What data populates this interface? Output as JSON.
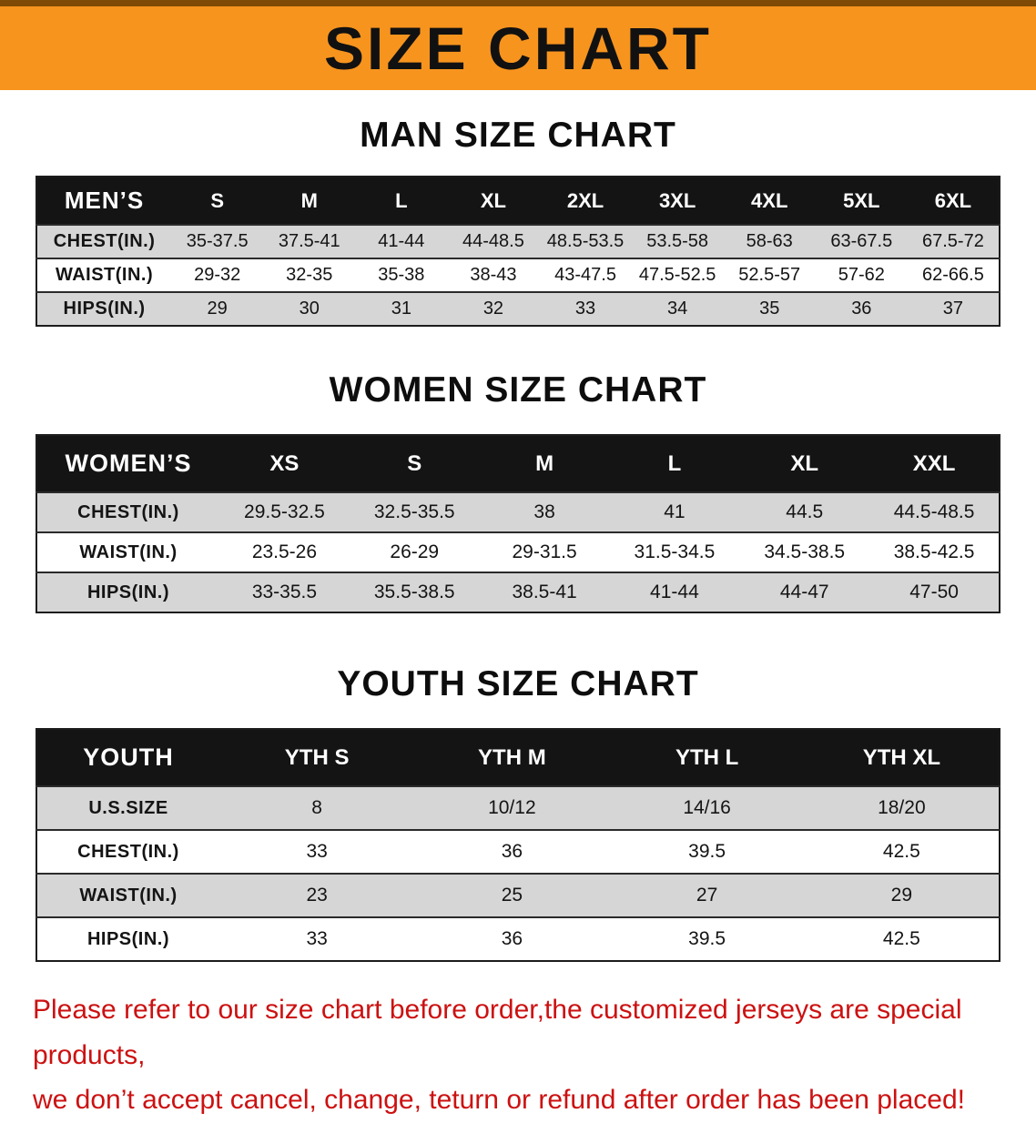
{
  "banner": {
    "title": "SIZE CHART"
  },
  "colors": {
    "banner_bg": "#F7941E",
    "header_bg": "#141414",
    "stripe": "#D6D6D6",
    "footer_text": "#CC1111"
  },
  "sections": [
    {
      "heading": "MAN SIZE CHART",
      "table": {
        "header": [
          "MEN’S",
          "S",
          "M",
          "L",
          "XL",
          "2XL",
          "3XL",
          "4XL",
          "5XL",
          "6XL"
        ],
        "rows": [
          [
            "CHEST(IN.)",
            "35-37.5",
            "37.5-41",
            "41-44",
            "44-48.5",
            "48.5-53.5",
            "53.5-58",
            "58-63",
            "63-67.5",
            "67.5-72"
          ],
          [
            "WAIST(IN.)",
            "29-32",
            "32-35",
            "35-38",
            "38-43",
            "43-47.5",
            "47.5-52.5",
            "52.5-57",
            "57-62",
            "62-66.5"
          ],
          [
            "HIPS(IN.)",
            "29",
            "30",
            "31",
            "32",
            "33",
            "34",
            "35",
            "36",
            "37"
          ]
        ]
      }
    },
    {
      "heading": "WOMEN SIZE CHART",
      "table": {
        "header": [
          "WOMEN’S",
          "XS",
          "S",
          "M",
          "L",
          "XL",
          "XXL"
        ],
        "rows": [
          [
            "CHEST(IN.)",
            "29.5-32.5",
            "32.5-35.5",
            "38",
            "41",
            "44.5",
            "44.5-48.5"
          ],
          [
            "WAIST(IN.)",
            "23.5-26",
            "26-29",
            "29-31.5",
            "31.5-34.5",
            "34.5-38.5",
            "38.5-42.5"
          ],
          [
            "HIPS(IN.)",
            "33-35.5",
            "35.5-38.5",
            "38.5-41",
            "41-44",
            "44-47",
            "47-50"
          ]
        ]
      }
    },
    {
      "heading": "YOUTH SIZE CHART",
      "table": {
        "header": [
          "YOUTH",
          "YTH S",
          "YTH M",
          "YTH L",
          "YTH XL"
        ],
        "rows": [
          [
            "U.S.SIZE",
            "8",
            "10/12",
            "14/16",
            "18/20"
          ],
          [
            "CHEST(IN.)",
            "33",
            "36",
            "39.5",
            "42.5"
          ],
          [
            "WAIST(IN.)",
            "23",
            "25",
            "27",
            "29"
          ],
          [
            "HIPS(IN.)",
            "33",
            "36",
            "39.5",
            "42.5"
          ]
        ]
      }
    }
  ],
  "footer": {
    "lines": [
      "Please refer to our size chart before order,the customized jerseys are special products,",
      "we don’t accept cancel, change, teturn or refund after order has been placed!"
    ]
  }
}
